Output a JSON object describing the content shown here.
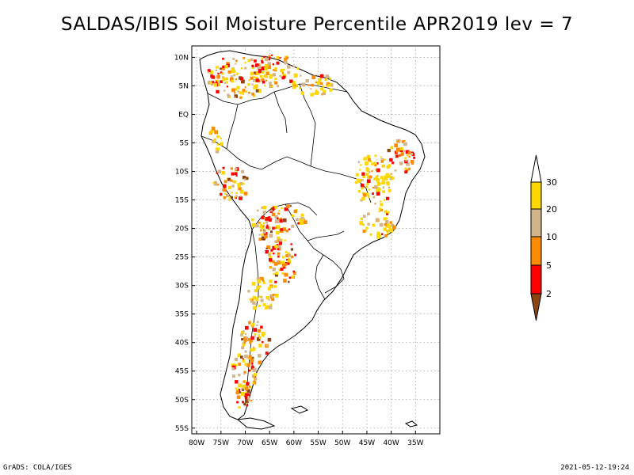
{
  "title": "SALDAS/IBIS Soil Moisture Percentile APR2019 lev = 7",
  "footer": {
    "left": "GrADS: COLA/IGES",
    "right": "2021-05-12-19:24"
  },
  "map": {
    "lat_labels": [
      "10N",
      "5N",
      "EQ",
      "5S",
      "10S",
      "15S",
      "20S",
      "25S",
      "30S",
      "35S",
      "40S",
      "45S",
      "50S",
      "55S"
    ],
    "lon_labels": [
      "80W",
      "75W",
      "70W",
      "65W",
      "60W",
      "55W",
      "50W",
      "45W",
      "40W",
      "35W"
    ],
    "lat_values": [
      10,
      5,
      0,
      -5,
      -10,
      -15,
      -20,
      -25,
      -30,
      -35,
      -40,
      -45,
      -50,
      -55
    ],
    "lon_values": [
      -80,
      -75,
      -70,
      -65,
      -60,
      -55,
      -50,
      -45,
      -40,
      -35
    ],
    "lat_range": [
      -56,
      12
    ],
    "lon_range": [
      -81,
      -30
    ],
    "grid": true,
    "projection": "latlon"
  },
  "legend": {
    "placement": "right",
    "labels": [
      "2",
      "5",
      "10",
      "20",
      "30"
    ],
    "colors": {
      "below_2": "#8b4513",
      "2_5": "#ff0000",
      "5_10": "#ff8c00",
      "10_20": "#d2b48c",
      "20_30": "#ffd700",
      "above_30": "#ffffff"
    }
  }
}
